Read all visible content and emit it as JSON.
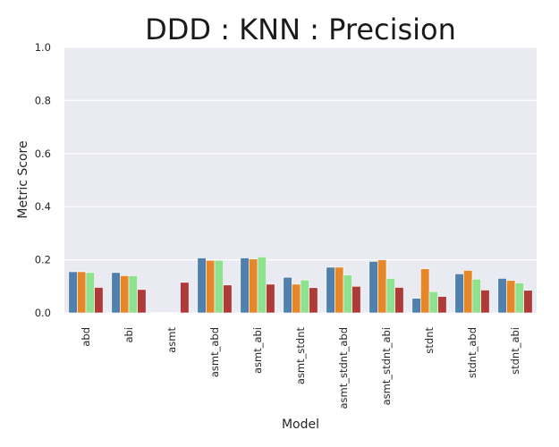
{
  "chart_data": {
    "type": "bar",
    "title": "DDD : KNN : Precision",
    "xlabel": "Model",
    "ylabel": "Metric Score",
    "ylim": [
      0,
      1
    ],
    "yticks": [
      "0.0",
      "0.2",
      "0.4",
      "0.6",
      "0.8",
      "1.0"
    ],
    "grid": true,
    "legend": "none",
    "categories": [
      "abd",
      "abi",
      "asmt",
      "asmt_abd",
      "asmt_abi",
      "asmt_stdnt",
      "asmt_stdnt_abd",
      "asmt_stdnt_abi",
      "stdnt",
      "stdnt_abd",
      "stdnt_abi"
    ],
    "series": [
      {
        "color": "#4f80ae",
        "values": [
          0.155,
          0.152,
          0.0,
          0.207,
          0.207,
          0.134,
          0.172,
          0.194,
          0.055,
          0.147,
          0.13
        ]
      },
      {
        "color": "#e6872a",
        "values": [
          0.155,
          0.14,
          0.0,
          0.198,
          0.203,
          0.108,
          0.172,
          0.2,
          0.166,
          0.16,
          0.122
        ]
      },
      {
        "color": "#8fe08f",
        "values": [
          0.152,
          0.14,
          0.0,
          0.198,
          0.211,
          0.124,
          0.143,
          0.13,
          0.08,
          0.127,
          0.113
        ]
      },
      {
        "color": "#b03a3a",
        "values": [
          0.096,
          0.088,
          0.115,
          0.105,
          0.108,
          0.095,
          0.1,
          0.096,
          0.062,
          0.086,
          0.085
        ]
      }
    ]
  }
}
